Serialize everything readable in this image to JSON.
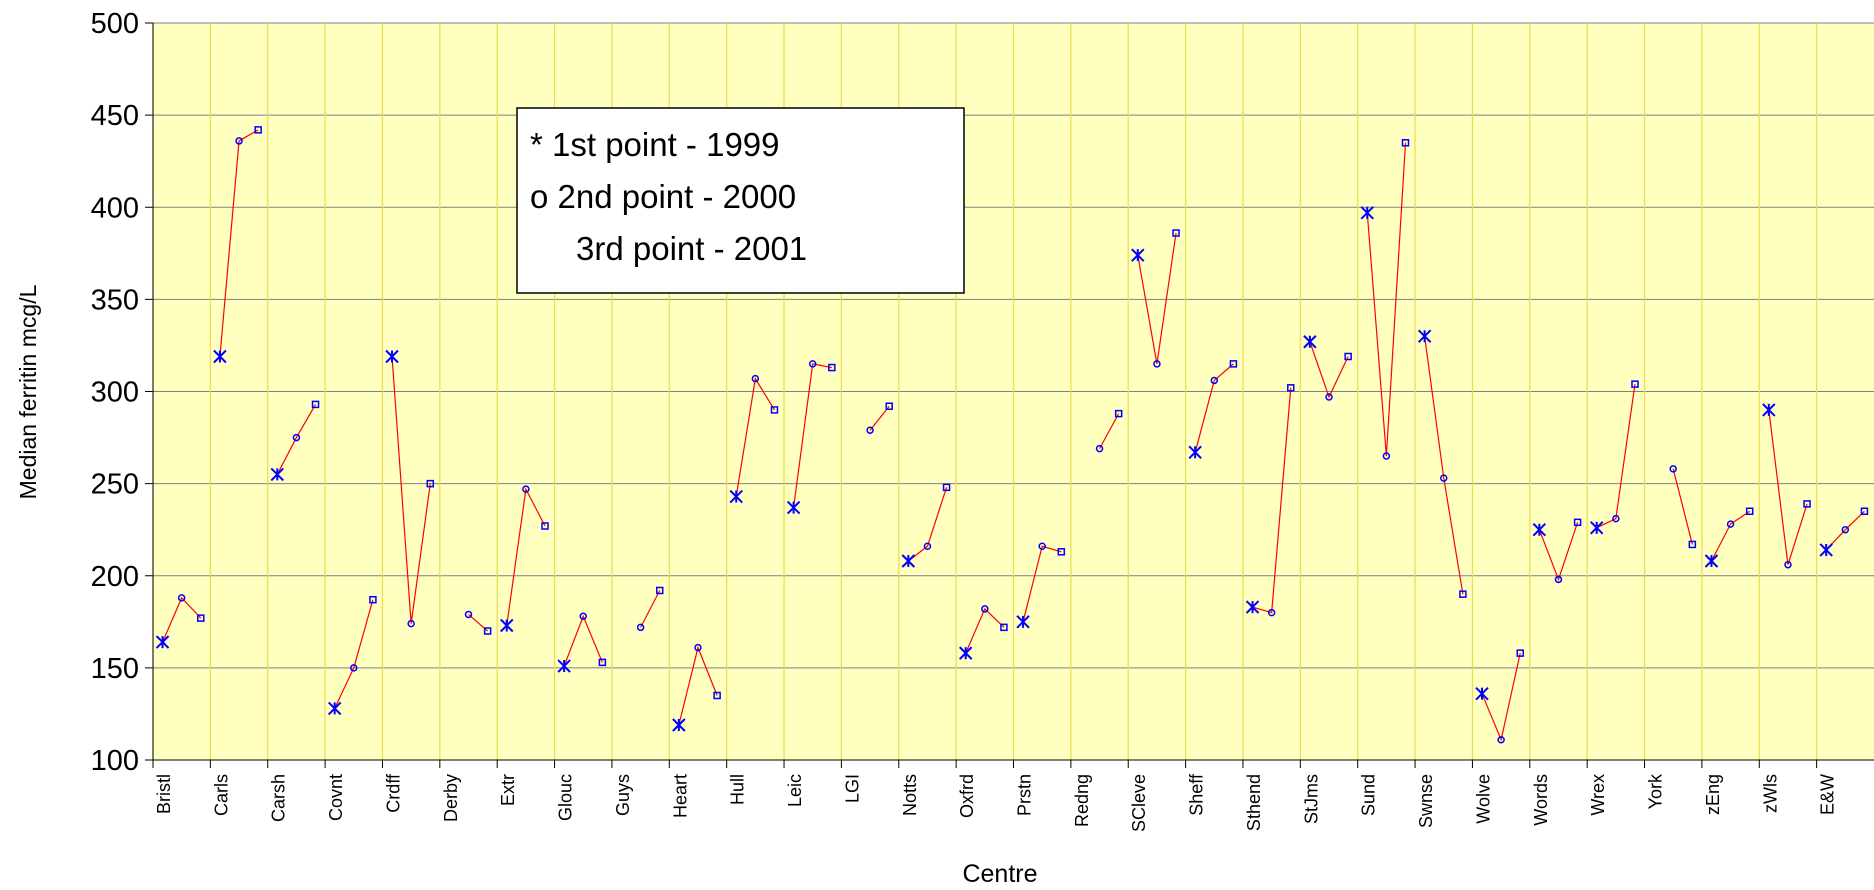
{
  "chart_data": {
    "type": "line",
    "x_label": "Centre",
    "y_label": "Median ferritin mcg/L",
    "categories": [
      "Bristl",
      "Carls",
      "Carsh",
      "Covnt",
      "Crdff",
      "Derby",
      "Extr",
      "Glouc",
      "Guys",
      "Heart",
      "Hull",
      "Leic",
      "LGI",
      "Notts",
      "Oxfrd",
      "Prstn",
      "Redng",
      "SCleve",
      "Sheff",
      "Sthend",
      "StJms",
      "Sund",
      "Swnse",
      "Wolve",
      "Words",
      "Wrex",
      "York",
      "zEng",
      "zWls",
      "E&W"
    ],
    "series": [
      {
        "marker": "asterisk",
        "color": "#0000ff",
        "values": [
          164,
          319,
          255,
          128,
          319,
          null,
          173,
          151,
          null,
          119,
          243,
          237,
          null,
          208,
          158,
          175,
          null,
          374,
          267,
          183,
          327,
          397,
          330,
          136,
          225,
          226,
          null,
          208,
          290,
          214
        ]
      },
      {
        "marker": "circle",
        "color": "#0000ff",
        "values": [
          188,
          436,
          275,
          150,
          174,
          179,
          247,
          178,
          172,
          161,
          307,
          315,
          279,
          216,
          182,
          216,
          269,
          315,
          306,
          180,
          297,
          265,
          253,
          111,
          198,
          231,
          258,
          228,
          206,
          225
        ]
      },
      {
        "marker": "square",
        "color": "#0000ff",
        "values": [
          177,
          442,
          293,
          187,
          250,
          170,
          227,
          153,
          192,
          135,
          290,
          313,
          292,
          248,
          172,
          213,
          288,
          386,
          315,
          302,
          319,
          435,
          190,
          158,
          229,
          304,
          217,
          235,
          239,
          235
        ]
      }
    ],
    "line_color": "#ff0000",
    "legend_lines": [
      "* 1st point - 1999",
      "o 2nd point - 2000",
      "3rd point - 2001"
    ],
    "ylim": [
      100,
      500
    ],
    "yticks": [
      100,
      150,
      200,
      250,
      300,
      350,
      400,
      450,
      500
    ],
    "grid": true
  }
}
